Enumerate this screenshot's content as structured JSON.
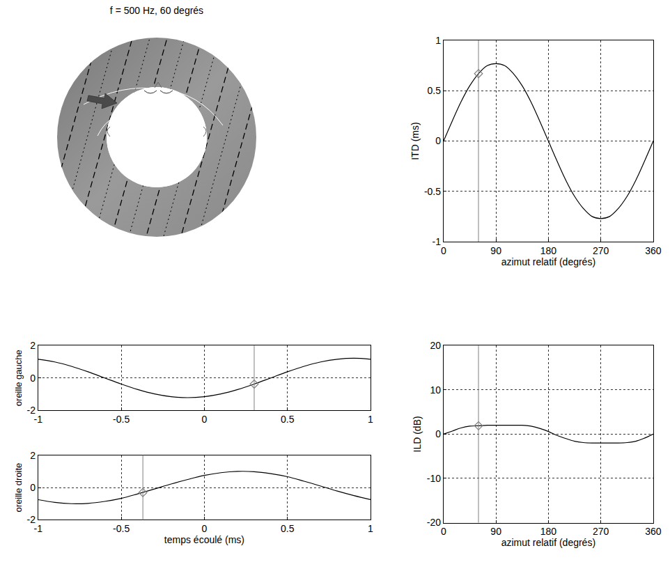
{
  "chart_data": [
    {
      "type": "diagram",
      "title": "f = 500 Hz, 60 degrés"
    },
    {
      "type": "line",
      "x_label": "azimut relatif (degrés)",
      "y_label": "ITD (ms)",
      "x": [
        0,
        15,
        30,
        45,
        60,
        75,
        90,
        105,
        120,
        135,
        150,
        165,
        180,
        195,
        210,
        225,
        240,
        255,
        270,
        285,
        300,
        315,
        330,
        345,
        360
      ],
      "values": [
        0,
        0.2,
        0.39,
        0.55,
        0.67,
        0.75,
        0.77,
        0.75,
        0.67,
        0.55,
        0.39,
        0.2,
        0,
        -0.2,
        -0.39,
        -0.55,
        -0.67,
        -0.75,
        -0.77,
        -0.75,
        -0.67,
        -0.55,
        -0.39,
        -0.2,
        0
      ],
      "color": "#000000",
      "xlim": [
        0,
        360
      ],
      "ylim": [
        -1,
        1
      ],
      "xticks": [
        0,
        90,
        180,
        270,
        360
      ],
      "yticks": [
        -1,
        -0.5,
        0,
        0.5,
        1
      ],
      "grid": true,
      "cursor": {
        "x": 60,
        "y": 0.67,
        "marker": "diamond",
        "color": "#808080"
      }
    },
    {
      "type": "line",
      "x_label": "azimut relatif (degrés)",
      "y_label": "ILD (dB)",
      "x": [
        0,
        15,
        30,
        45,
        60,
        75,
        90,
        105,
        120,
        135,
        150,
        165,
        180,
        195,
        210,
        225,
        240,
        255,
        270,
        285,
        300,
        315,
        330,
        345,
        360
      ],
      "values": [
        0,
        0.7,
        1.4,
        1.8,
        1.9,
        2,
        2,
        2,
        2,
        2,
        1.8,
        1.3,
        0.6,
        -0.3,
        -1,
        -1.6,
        -1.9,
        -2,
        -2,
        -2,
        -2,
        -1.9,
        -1.6,
        -0.9,
        0
      ],
      "color": "#000000",
      "xlim": [
        0,
        360
      ],
      "ylim": [
        -20,
        20
      ],
      "xticks": [
        0,
        90,
        180,
        270,
        360
      ],
      "yticks": [
        -20,
        -10,
        0,
        10,
        20
      ],
      "grid": true,
      "cursor": {
        "x": 60,
        "y": 1.9,
        "marker": "diamond",
        "color": "#808080"
      }
    },
    {
      "type": "line",
      "y_label": "oreille gauche",
      "x": [
        -1,
        -0.9,
        -0.8,
        -0.7,
        -0.6,
        -0.5,
        -0.4,
        -0.3,
        -0.2,
        -0.1,
        0,
        0.1,
        0.2,
        0.3,
        0.4,
        0.5,
        0.6,
        0.7,
        0.8,
        0.9,
        1
      ],
      "values": [
        1.16,
        0.99,
        0.72,
        0.38,
        0,
        -0.38,
        -0.72,
        -0.99,
        -1.16,
        -1.22,
        -1.16,
        -0.99,
        -0.72,
        -0.38,
        0,
        0.38,
        0.72,
        0.99,
        1.16,
        1.22,
        1.16
      ],
      "color": "#000000",
      "xlim": [
        -1,
        1
      ],
      "ylim": [
        -2,
        2
      ],
      "xticks": [
        -1,
        -0.5,
        0,
        0.5,
        1
      ],
      "yticks": [
        -2,
        0,
        2
      ],
      "grid": true,
      "cursor": {
        "x": 0.3,
        "y": -0.38,
        "marker": "diamond",
        "color": "#808080"
      }
    },
    {
      "type": "line",
      "x_label": "temps écoulé (ms)",
      "y_label": "oreille droite",
      "x": [
        -1,
        -0.9,
        -0.8,
        -0.7,
        -0.6,
        -0.5,
        -0.4,
        -0.3,
        -0.2,
        -0.1,
        0,
        0.1,
        0.2,
        0.3,
        0.4,
        0.5,
        0.6,
        0.7,
        0.8,
        0.9,
        1
      ],
      "values": [
        -0.75,
        -0.92,
        -1,
        -0.98,
        -0.86,
        -0.67,
        -0.39,
        -0.09,
        0.22,
        0.5,
        0.75,
        0.92,
        1,
        0.98,
        0.86,
        0.67,
        0.39,
        0.09,
        -0.22,
        -0.5,
        -0.75
      ],
      "color": "#000000",
      "xlim": [
        -1,
        1
      ],
      "ylim": [
        -2,
        2
      ],
      "xticks": [
        -1,
        -0.5,
        0,
        0.5,
        1
      ],
      "yticks": [
        -2,
        0,
        2
      ],
      "grid": true,
      "cursor": {
        "x": -0.37,
        "y": -0.31,
        "marker": "diamond",
        "color": "#808080"
      }
    }
  ]
}
